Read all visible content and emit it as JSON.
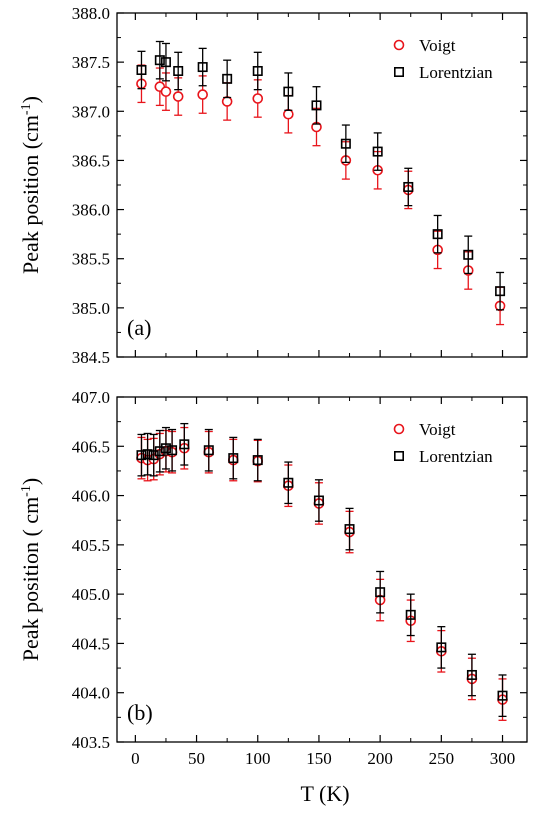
{
  "chart_data": [
    {
      "type": "scatter",
      "panel_label": "(a)",
      "ylabel": "Peak position (cm",
      "ylabel_sup": "-1",
      "ylabel_close": ")",
      "xlabel": "",
      "xlim": [
        -15,
        320
      ],
      "ylim": [
        384.5,
        388.0
      ],
      "xticks": [
        0,
        50,
        100,
        150,
        200,
        250,
        300
      ],
      "xtick_labels": [
        "",
        "",
        "",
        "",
        "",
        "",
        ""
      ],
      "yticks": [
        384.5,
        385.0,
        385.5,
        386.0,
        386.5,
        387.0,
        387.5,
        388.0
      ],
      "ytick_labels": [
        "384.5",
        "385.0",
        "385.5",
        "386.0",
        "386.5",
        "387.0",
        "387.5",
        "388.0"
      ],
      "legend_position": "top-right",
      "series": [
        {
          "name": "Voigt",
          "marker": "circle",
          "color": "#e8141b",
          "x": [
            5,
            20,
            25,
            35,
            55,
            75,
            100,
            125,
            148,
            172,
            198,
            223,
            247,
            272,
            298
          ],
          "y": [
            387.28,
            387.25,
            387.2,
            387.15,
            387.17,
            387.1,
            387.13,
            386.97,
            386.84,
            386.5,
            386.4,
            386.2,
            385.59,
            385.38,
            385.02
          ],
          "err": [
            0.19,
            0.19,
            0.19,
            0.19,
            0.19,
            0.19,
            0.19,
            0.19,
            0.19,
            0.19,
            0.19,
            0.19,
            0.19,
            0.19,
            0.19
          ]
        },
        {
          "name": "Lorentzian",
          "marker": "square",
          "color": "#000000",
          "x": [
            5,
            20,
            25,
            35,
            55,
            75,
            100,
            125,
            148,
            172,
            198,
            223,
            247,
            272,
            298
          ],
          "y": [
            387.42,
            387.52,
            387.5,
            387.41,
            387.45,
            387.33,
            387.41,
            387.2,
            387.06,
            386.67,
            386.59,
            386.23,
            385.75,
            385.54,
            385.17
          ],
          "err": [
            0.19,
            0.19,
            0.19,
            0.19,
            0.19,
            0.19,
            0.19,
            0.19,
            0.19,
            0.19,
            0.19,
            0.19,
            0.19,
            0.19,
            0.19
          ]
        }
      ]
    },
    {
      "type": "scatter",
      "panel_label": "(b)",
      "ylabel": "Peak position ( cm",
      "ylabel_sup": "-1",
      "ylabel_close": ")",
      "xlabel": "T (K)",
      "xlim": [
        -15,
        320
      ],
      "ylim": [
        403.5,
        407.0
      ],
      "xticks": [
        0,
        50,
        100,
        150,
        200,
        250,
        300
      ],
      "xtick_labels": [
        "0",
        "50",
        "100",
        "150",
        "200",
        "250",
        "300"
      ],
      "yticks": [
        403.5,
        404.0,
        404.5,
        405.0,
        405.5,
        406.0,
        406.5,
        407.0
      ],
      "ytick_labels": [
        "403.5",
        "404.0",
        "404.5",
        "405.0",
        "405.5",
        "406.0",
        "406.5",
        "407.0"
      ],
      "legend_position": "top-right",
      "series": [
        {
          "name": "Voigt",
          "marker": "circle",
          "color": "#e8141b",
          "x": [
            5,
            10,
            15,
            20,
            25,
            30,
            40,
            60,
            80,
            100,
            125,
            150,
            175,
            200,
            225,
            250,
            275,
            300
          ],
          "y": [
            406.38,
            406.36,
            406.37,
            406.42,
            406.45,
            406.44,
            406.48,
            406.44,
            406.36,
            406.35,
            406.1,
            405.92,
            405.63,
            404.94,
            404.73,
            404.42,
            404.14,
            403.93
          ],
          "err": [
            0.21,
            0.21,
            0.21,
            0.21,
            0.21,
            0.21,
            0.21,
            0.21,
            0.21,
            0.21,
            0.21,
            0.21,
            0.21,
            0.21,
            0.21,
            0.21,
            0.21,
            0.21
          ]
        },
        {
          "name": "Lorentzian",
          "marker": "square",
          "color": "#000000",
          "x": [
            5,
            10,
            15,
            20,
            25,
            30,
            40,
            60,
            80,
            100,
            125,
            150,
            175,
            200,
            225,
            250,
            275,
            300
          ],
          "y": [
            406.41,
            406.42,
            406.41,
            406.45,
            406.48,
            406.46,
            406.52,
            406.46,
            406.38,
            406.36,
            406.13,
            405.95,
            405.66,
            405.02,
            404.79,
            404.46,
            404.18,
            403.97
          ],
          "err": [
            0.21,
            0.21,
            0.21,
            0.21,
            0.21,
            0.21,
            0.21,
            0.21,
            0.21,
            0.21,
            0.21,
            0.21,
            0.21,
            0.21,
            0.21,
            0.21,
            0.21,
            0.21
          ]
        }
      ]
    }
  ]
}
